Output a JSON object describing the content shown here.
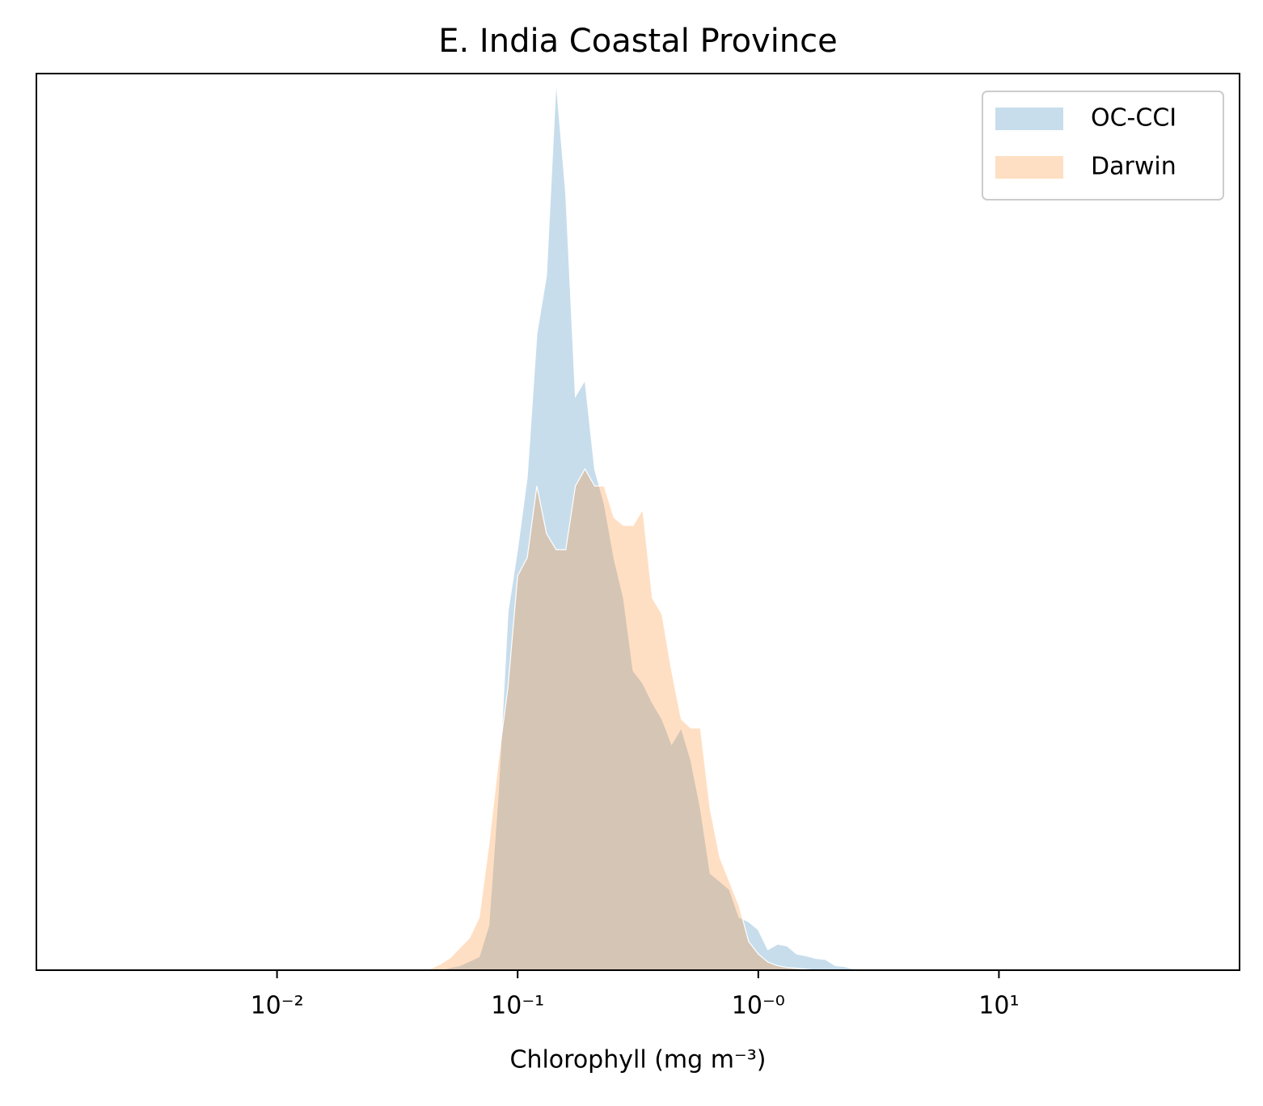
{
  "chart_data": {
    "type": "area",
    "title": "E. India Coastal Province",
    "xlabel": "Chlorophyll  (mg m⁻³)",
    "xscale": "log",
    "xlim": [
      0.001,
      100
    ],
    "xticks": [
      {
        "value": 0.01,
        "label": "10⁻²"
      },
      {
        "value": 0.1,
        "label": "10⁻¹"
      },
      {
        "value": 1,
        "label": "10⁻⁰"
      },
      {
        "value": 10,
        "label": "10¹"
      }
    ],
    "ylim": [
      0,
      100
    ],
    "legend": "upper right",
    "x": [
      0.0363,
      0.0398,
      0.0437,
      0.0479,
      0.0525,
      0.0575,
      0.0631,
      0.0692,
      0.0759,
      0.0832,
      0.0912,
      0.1,
      0.1096,
      0.1202,
      0.1318,
      0.1445,
      0.1585,
      0.1738,
      0.1905,
      0.2089,
      0.2291,
      0.2512,
      0.2754,
      0.302,
      0.3311,
      0.3631,
      0.3981,
      0.4365,
      0.4786,
      0.5248,
      0.5754,
      0.631,
      0.6918,
      0.7586,
      0.8318,
      0.912,
      1,
      1.096,
      1.202,
      1.318,
      1.445,
      1.585,
      1.738,
      1.905,
      2.089,
      2.291,
      2.512,
      2.754,
      3.02,
      3.311,
      3.631
    ],
    "series": [
      {
        "name": "OC-CCI",
        "color": "#1f77b4",
        "values": [
          0,
          0,
          0,
          0,
          0.3,
          0.5,
          1,
          1.5,
          5,
          20,
          40,
          47,
          55,
          71,
          77.5,
          99.2,
          86.6,
          64,
          65.8,
          55.9,
          52,
          46,
          41.5,
          33.4,
          32,
          29.8,
          28,
          25.2,
          27,
          23.4,
          18,
          10.8,
          9.9,
          9,
          5.9,
          5.4,
          4.5,
          2.3,
          2.9,
          2.7,
          1.8,
          1.6,
          1.3,
          1.2,
          0.5,
          0.4,
          0.1,
          0.1,
          0.1,
          0,
          0
        ]
      },
      {
        "name": "Darwin",
        "color": "#ff7f0e",
        "values": [
          0,
          0,
          0.2,
          0.7,
          1.4,
          2.5,
          3.6,
          5.9,
          14,
          23.4,
          31.6,
          44,
          46,
          54,
          48.7,
          46.9,
          46.9,
          54,
          55.9,
          54,
          54,
          50.5,
          49.6,
          49.6,
          51.4,
          41.5,
          39.7,
          33.4,
          28,
          27,
          27,
          18,
          12.6,
          9.9,
          7.2,
          3.2,
          1.8,
          0.9,
          0.5,
          0.3,
          0.2,
          0.1,
          0,
          0,
          0,
          0,
          0,
          0,
          0,
          0,
          0
        ]
      }
    ]
  }
}
